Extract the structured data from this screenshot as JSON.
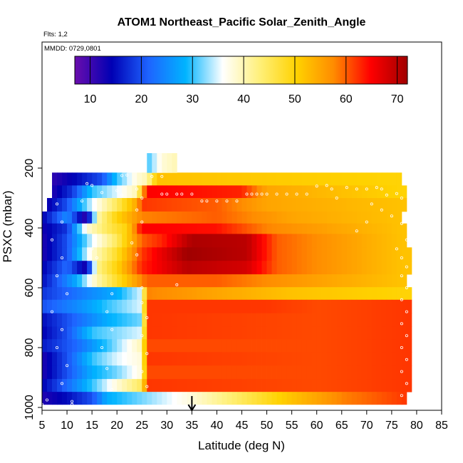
{
  "chart_data": {
    "type": "heatmap",
    "title": "ATOM1 Northeast_Pacific Solar_Zenith_Angle",
    "flights_note": "Flts: 1,2",
    "date_note": "MMDD: 0729,0801",
    "xlabel": "Latitude (deg N)",
    "ylabel": "PSXC (mbar)",
    "xlim": [
      5,
      85
    ],
    "ylim": [
      1000,
      0
    ],
    "x_ticks": [
      5,
      10,
      15,
      20,
      25,
      30,
      35,
      40,
      45,
      50,
      55,
      60,
      65,
      70,
      75,
      80,
      85
    ],
    "y_ticks": [
      200,
      400,
      600,
      800,
      1000
    ],
    "colorbar": {
      "range": [
        7,
        72
      ],
      "ticks": [
        10,
        20,
        30,
        40,
        50,
        60,
        70
      ],
      "colors": [
        "#6a0dad",
        "#0000b4",
        "#1e64ff",
        "#00b4ff",
        "#ffffff",
        "#fff07a",
        "#ffd200",
        "#ff8c00",
        "#ff0000",
        "#a00000"
      ]
    },
    "marker_latitude": 35,
    "pressure_bins": [
      {
        "p_top": 215,
        "p_bot": 258,
        "lat_min": 7,
        "lat_max": 77,
        "profile": [
          [
            7,
            11
          ],
          [
            12,
            15
          ],
          [
            17,
            20
          ],
          [
            20,
            30
          ],
          [
            24,
            38
          ],
          [
            26,
            40
          ],
          [
            28,
            52
          ],
          [
            77,
            50
          ]
        ]
      },
      {
        "p_top": 258,
        "p_bot": 300,
        "lat_min": 7,
        "lat_max": 78,
        "profile": [
          [
            7,
            12
          ],
          [
            11,
            18
          ],
          [
            15,
            30
          ],
          [
            20,
            35
          ],
          [
            24,
            40
          ],
          [
            26,
            65
          ],
          [
            45,
            63
          ],
          [
            50,
            55
          ],
          [
            77,
            50
          ]
        ]
      },
      {
        "p_top": 300,
        "p_bot": 345,
        "lat_min": 6,
        "lat_max": 78,
        "profile": [
          [
            6,
            13
          ],
          [
            10,
            20
          ],
          [
            15,
            35
          ],
          [
            20,
            45
          ],
          [
            24,
            55
          ],
          [
            25,
            62
          ],
          [
            40,
            60
          ],
          [
            50,
            55
          ],
          [
            77,
            52
          ]
        ]
      },
      {
        "p_top": 345,
        "p_bot": 385,
        "lat_min": 5,
        "lat_max": 77,
        "profile": [
          [
            5,
            14
          ],
          [
            10,
            25
          ],
          [
            14,
            10
          ],
          [
            16,
            40
          ],
          [
            20,
            50
          ],
          [
            25,
            58
          ],
          [
            40,
            60
          ],
          [
            55,
            55
          ],
          [
            77,
            52
          ]
        ]
      },
      {
        "p_top": 385,
        "p_bot": 420,
        "lat_min": 5,
        "lat_max": 78,
        "profile": [
          [
            5,
            13
          ],
          [
            10,
            18
          ],
          [
            14,
            38
          ],
          [
            18,
            45
          ],
          [
            22,
            50
          ],
          [
            25,
            65
          ],
          [
            40,
            64
          ],
          [
            50,
            58
          ],
          [
            77,
            52
          ]
        ]
      },
      {
        "p_top": 420,
        "p_bot": 465,
        "lat_min": 5,
        "lat_max": 78,
        "profile": [
          [
            5,
            12
          ],
          [
            10,
            20
          ],
          [
            15,
            35
          ],
          [
            20,
            45
          ],
          [
            25,
            60
          ],
          [
            29,
            63
          ],
          [
            35,
            71
          ],
          [
            46,
            70
          ],
          [
            52,
            60
          ],
          [
            77,
            52
          ]
        ]
      },
      {
        "p_top": 465,
        "p_bot": 510,
        "lat_min": 5,
        "lat_max": 79,
        "profile": [
          [
            5,
            12
          ],
          [
            10,
            20
          ],
          [
            15,
            38
          ],
          [
            20,
            48
          ],
          [
            25,
            62
          ],
          [
            34,
            72
          ],
          [
            46,
            70
          ],
          [
            52,
            60
          ],
          [
            77,
            52
          ]
        ]
      },
      {
        "p_top": 510,
        "p_bot": 555,
        "lat_min": 5,
        "lat_max": 79,
        "profile": [
          [
            5,
            14
          ],
          [
            10,
            22
          ],
          [
            14,
            12
          ],
          [
            16,
            42
          ],
          [
            20,
            50
          ],
          [
            25,
            63
          ],
          [
            34,
            70
          ],
          [
            46,
            68
          ],
          [
            52,
            60
          ],
          [
            77,
            52
          ]
        ]
      },
      {
        "p_top": 555,
        "p_bot": 598,
        "lat_min": 5,
        "lat_max": 78,
        "profile": [
          [
            5,
            15
          ],
          [
            12,
            28
          ],
          [
            16,
            40
          ],
          [
            20,
            48
          ],
          [
            26,
            60
          ],
          [
            40,
            60
          ],
          [
            52,
            57
          ],
          [
            77,
            52
          ]
        ]
      },
      {
        "p_top": 598,
        "p_bot": 640,
        "lat_min": 5,
        "lat_max": 79,
        "profile": [
          [
            5,
            18
          ],
          [
            15,
            25
          ],
          [
            20,
            28
          ],
          [
            25,
            35
          ],
          [
            26,
            58
          ],
          [
            40,
            55
          ],
          [
            55,
            52
          ],
          [
            77,
            50
          ]
        ]
      },
      {
        "p_top": 640,
        "p_bot": 685,
        "lat_min": 5,
        "lat_max": 79,
        "profile": [
          [
            5,
            20
          ],
          [
            12,
            25
          ],
          [
            18,
            30
          ],
          [
            25,
            35
          ],
          [
            26,
            62
          ],
          [
            50,
            62
          ],
          [
            60,
            61
          ],
          [
            79,
            62
          ]
        ]
      },
      {
        "p_top": 685,
        "p_bot": 730,
        "lat_min": 5,
        "lat_max": 79,
        "profile": [
          [
            5,
            15
          ],
          [
            12,
            22
          ],
          [
            18,
            28
          ],
          [
            25,
            32
          ],
          [
            26,
            62
          ],
          [
            60,
            61
          ],
          [
            79,
            62
          ]
        ]
      },
      {
        "p_top": 730,
        "p_bot": 772,
        "lat_min": 5,
        "lat_max": 79,
        "profile": [
          [
            5,
            14
          ],
          [
            10,
            20
          ],
          [
            15,
            30
          ],
          [
            25,
            35
          ],
          [
            26,
            62
          ],
          [
            60,
            61
          ],
          [
            79,
            62
          ]
        ]
      },
      {
        "p_top": 772,
        "p_bot": 815,
        "lat_min": 5,
        "lat_max": 79,
        "profile": [
          [
            5,
            16
          ],
          [
            12,
            22
          ],
          [
            18,
            30
          ],
          [
            25,
            40
          ],
          [
            26,
            61
          ],
          [
            60,
            61
          ],
          [
            79,
            62
          ]
        ]
      },
      {
        "p_top": 815,
        "p_bot": 860,
        "lat_min": 5,
        "lat_max": 79,
        "profile": [
          [
            5,
            12
          ],
          [
            10,
            20
          ],
          [
            15,
            30
          ],
          [
            20,
            35
          ],
          [
            25,
            38
          ],
          [
            26,
            62
          ],
          [
            60,
            61
          ],
          [
            79,
            62
          ]
        ]
      },
      {
        "p_top": 860,
        "p_bot": 905,
        "lat_min": 5,
        "lat_max": 79,
        "profile": [
          [
            5,
            12
          ],
          [
            10,
            20
          ],
          [
            15,
            28
          ],
          [
            20,
            32
          ],
          [
            25,
            38
          ],
          [
            26,
            61
          ],
          [
            60,
            61
          ],
          [
            79,
            62
          ]
        ]
      },
      {
        "p_top": 905,
        "p_bot": 948,
        "lat_min": 5,
        "lat_max": 79,
        "profile": [
          [
            5,
            14
          ],
          [
            10,
            22
          ],
          [
            15,
            30
          ],
          [
            20,
            38
          ],
          [
            25,
            45
          ],
          [
            26,
            62
          ],
          [
            60,
            61
          ],
          [
            79,
            62
          ]
        ]
      },
      {
        "p_top": 948,
        "p_bot": 990,
        "lat_min": 5,
        "lat_max": 78,
        "profile": [
          [
            5,
            12
          ],
          [
            10,
            15
          ],
          [
            15,
            20
          ],
          [
            18,
            28
          ],
          [
            25,
            32
          ],
          [
            35,
            38
          ],
          [
            45,
            45
          ],
          [
            55,
            52
          ],
          [
            65,
            58
          ],
          [
            78,
            62
          ]
        ]
      }
    ],
    "upper_patch": {
      "p_top": 150,
      "p_bot": 215,
      "lat_min": 26,
      "lat_max": 32,
      "profile": [
        [
          26,
          30
        ],
        [
          29,
          38
        ],
        [
          32,
          40
        ]
      ]
    },
    "sample_points": [
      {
        "lat": 21,
        "p": 225
      },
      {
        "lat": 22,
        "p": 223
      },
      {
        "lat": 27,
        "p": 228
      },
      {
        "lat": 29,
        "p": 228
      },
      {
        "lat": 14,
        "p": 252
      },
      {
        "lat": 15,
        "p": 258
      },
      {
        "lat": 17,
        "p": 282
      },
      {
        "lat": 20,
        "p": 275
      },
      {
        "lat": 29,
        "p": 287
      },
      {
        "lat": 30,
        "p": 287
      },
      {
        "lat": 32,
        "p": 287
      },
      {
        "lat": 33,
        "p": 287
      },
      {
        "lat": 35,
        "p": 287
      },
      {
        "lat": 37,
        "p": 310
      },
      {
        "lat": 38,
        "p": 310
      },
      {
        "lat": 40,
        "p": 310
      },
      {
        "lat": 42,
        "p": 310
      },
      {
        "lat": 44,
        "p": 310
      },
      {
        "lat": 46,
        "p": 287
      },
      {
        "lat": 47,
        "p": 287
      },
      {
        "lat": 48,
        "p": 287
      },
      {
        "lat": 49,
        "p": 287
      },
      {
        "lat": 50,
        "p": 287
      },
      {
        "lat": 52,
        "p": 287
      },
      {
        "lat": 54,
        "p": 287
      },
      {
        "lat": 56,
        "p": 287
      },
      {
        "lat": 58,
        "p": 287
      },
      {
        "lat": 60,
        "p": 260
      },
      {
        "lat": 62,
        "p": 258
      },
      {
        "lat": 63,
        "p": 270
      },
      {
        "lat": 64,
        "p": 300
      },
      {
        "lat": 66,
        "p": 265
      },
      {
        "lat": 68,
        "p": 270
      },
      {
        "lat": 70,
        "p": 270
      },
      {
        "lat": 72,
        "p": 265
      },
      {
        "lat": 73,
        "p": 270
      },
      {
        "lat": 74,
        "p": 290
      },
      {
        "lat": 76,
        "p": 285
      },
      {
        "lat": 77,
        "p": 300
      },
      {
        "lat": 71,
        "p": 320
      },
      {
        "lat": 73,
        "p": 340
      },
      {
        "lat": 75,
        "p": 360
      },
      {
        "lat": 70,
        "p": 380
      },
      {
        "lat": 68,
        "p": 410
      },
      {
        "lat": 78,
        "p": 440
      },
      {
        "lat": 76,
        "p": 470
      },
      {
        "lat": 77,
        "p": 500
      },
      {
        "lat": 78,
        "p": 530
      },
      {
        "lat": 77,
        "p": 560
      },
      {
        "lat": 78,
        "p": 600
      },
      {
        "lat": 77,
        "p": 640
      },
      {
        "lat": 78,
        "p": 680
      },
      {
        "lat": 77,
        "p": 720
      },
      {
        "lat": 78,
        "p": 760
      },
      {
        "lat": 77,
        "p": 800
      },
      {
        "lat": 78,
        "p": 840
      },
      {
        "lat": 77,
        "p": 880
      },
      {
        "lat": 78,
        "p": 920
      },
      {
        "lat": 77,
        "p": 960
      },
      {
        "lat": 77,
        "p": 385
      },
      {
        "lat": 8,
        "p": 320
      },
      {
        "lat": 9,
        "p": 380
      },
      {
        "lat": 7,
        "p": 440
      },
      {
        "lat": 9,
        "p": 500
      },
      {
        "lat": 8,
        "p": 560
      },
      {
        "lat": 10,
        "p": 620
      },
      {
        "lat": 7,
        "p": 680
      },
      {
        "lat": 9,
        "p": 740
      },
      {
        "lat": 8,
        "p": 800
      },
      {
        "lat": 10,
        "p": 860
      },
      {
        "lat": 9,
        "p": 920
      },
      {
        "lat": 11,
        "p": 980
      },
      {
        "lat": 5,
        "p": 990
      },
      {
        "lat": 6,
        "p": 975
      },
      {
        "lat": 11,
        "p": 990
      },
      {
        "lat": 19,
        "p": 620
      },
      {
        "lat": 18,
        "p": 680
      },
      {
        "lat": 19,
        "p": 740
      },
      {
        "lat": 17,
        "p": 800
      },
      {
        "lat": 18,
        "p": 870
      },
      {
        "lat": 19,
        "p": 940
      },
      {
        "lat": 25,
        "p": 600
      },
      {
        "lat": 25,
        "p": 650
      },
      {
        "lat": 26,
        "p": 700
      },
      {
        "lat": 25,
        "p": 760
      },
      {
        "lat": 26,
        "p": 820
      },
      {
        "lat": 25,
        "p": 880
      },
      {
        "lat": 26,
        "p": 930
      },
      {
        "lat": 25,
        "p": 300
      },
      {
        "lat": 24,
        "p": 340
      },
      {
        "lat": 25,
        "p": 380
      },
      {
        "lat": 23,
        "p": 450
      },
      {
        "lat": 24,
        "p": 490
      },
      {
        "lat": 32,
        "p": 590
      },
      {
        "lat": 15,
        "p": 470
      },
      {
        "lat": 16,
        "p": 500
      },
      {
        "lat": 13,
        "p": 310
      },
      {
        "lat": 21,
        "p": 290
      },
      {
        "lat": 24,
        "p": 270
      }
    ]
  }
}
